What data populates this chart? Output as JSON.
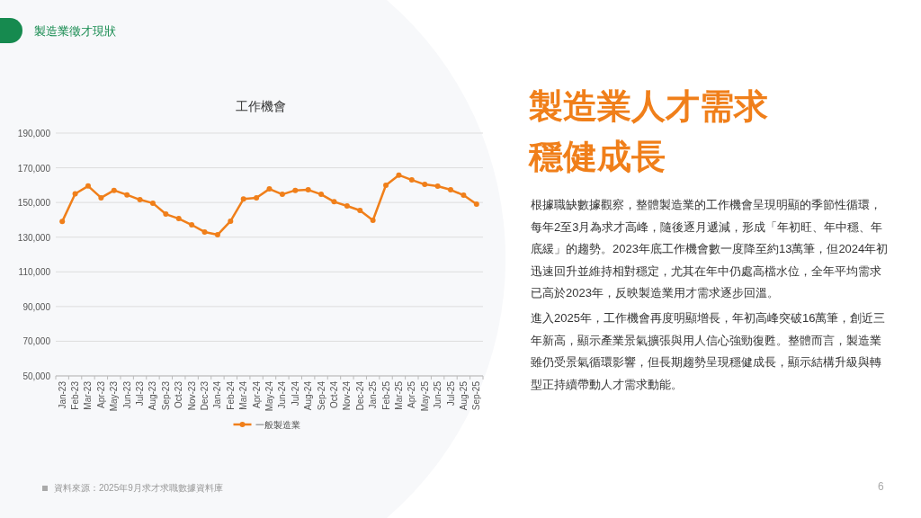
{
  "chart_data": {
    "type": "line",
    "title": "工作機會",
    "categories": [
      "Jan-23",
      "Feb-23",
      "Mar-23",
      "Apr-23",
      "May-23",
      "Jun-23",
      "Jul-23",
      "Aug-23",
      "Sep-23",
      "Oct-23",
      "Nov-23",
      "Dec-23",
      "Jan-24",
      "Feb-24",
      "Mar-24",
      "Apr-24",
      "May-24",
      "Jun-24",
      "Jul-24",
      "Aug-24",
      "Sep-24",
      "Oct-24",
      "Nov-24",
      "Dec-24",
      "Jan-25",
      "Feb-25",
      "Mar-25",
      "Apr-25",
      "May-25",
      "Jun-25",
      "Jul-25",
      "Aug-25",
      "Sep-25"
    ],
    "series": [
      {
        "name": "一般製造業",
        "color": "#f07f1a",
        "values": [
          139000,
          155000,
          159500,
          152700,
          157000,
          154400,
          151600,
          149600,
          143300,
          140700,
          137100,
          133000,
          131400,
          139200,
          152000,
          152700,
          157800,
          154700,
          157000,
          157300,
          154700,
          150400,
          148000,
          145400,
          139700,
          159900,
          165800,
          163000,
          160400,
          159400,
          157300,
          154200,
          149000
        ]
      }
    ],
    "ylim": [
      50000,
      190000
    ],
    "yticks": [
      {
        "value": 50000,
        "label": "50,000"
      },
      {
        "value": 70000,
        "label": "70,000"
      },
      {
        "value": 90000,
        "label": "90,000"
      },
      {
        "value": 110000,
        "label": "110,000"
      },
      {
        "value": 130000,
        "label": "130,000"
      },
      {
        "value": 150000,
        "label": "150,000"
      },
      {
        "value": 170000,
        "label": "170,000"
      },
      {
        "value": 190000,
        "label": "190,000"
      }
    ],
    "grid": "y",
    "legend": "bottom",
    "marker": "circle",
    "line_style": "solid",
    "annotations": [
      "製造業徵才現狀",
      "製造業人才需求穩健成長",
      "根據職缺數據觀察，整體製造業的工作機會呈現明顯的季節性循環，每年2至3月為求才高峰，隨後逐月遞減，形成「年初旺、年中穩、年底緩」的趨勢。2023年底工作機會數一度降至約13萬筆，但2024年初迅速回升並維持相對穩定，尤其在年中仍處高檔水位，全年平均需求已高於2023年，反映製造業用才需求逐步回溫。",
      "進入2025年，工作機會再度明顯增長，年初高峰突破16萬筆，創近三年新高，顯示產業景氣擴張與用人信心強勁復甦。整體而言，製造業雖仍受景氣循環影響，但長期趨勢呈現穩健成長，顯示結構升級與轉型正持續帶動人才需求動能。",
      "資料來源：2025年9月求才求職數據資料庫",
      "6"
    ]
  }
}
